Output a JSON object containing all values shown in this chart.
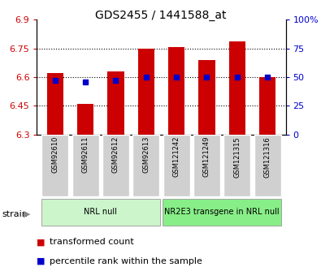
{
  "title": "GDS2455 / 1441588_at",
  "samples": [
    "GSM92610",
    "GSM92611",
    "GSM92612",
    "GSM92613",
    "GSM121242",
    "GSM121249",
    "GSM121315",
    "GSM121316"
  ],
  "transformed_counts": [
    6.62,
    6.46,
    6.63,
    6.75,
    6.755,
    6.69,
    6.785,
    6.6
  ],
  "percentile_ranks": [
    47,
    46,
    47,
    50,
    50,
    50,
    50,
    50
  ],
  "ylim": [
    6.3,
    6.9
  ],
  "yticks": [
    6.3,
    6.45,
    6.6,
    6.75,
    6.9
  ],
  "ytick_labels": [
    "6.3",
    "6.45",
    "6.6",
    "6.75",
    "6.9"
  ],
  "y2lim": [
    0,
    100
  ],
  "y2ticks": [
    0,
    25,
    50,
    75,
    100
  ],
  "y2tick_labels": [
    "0",
    "25",
    "50",
    "75",
    "100%"
  ],
  "bar_color": "#cc0000",
  "dot_color": "#0000cc",
  "groups": [
    {
      "label": "NRL null",
      "start": 0,
      "end": 4,
      "color": "#ccf5cc"
    },
    {
      "label": "NR2E3 transgene in NRL null",
      "start": 4,
      "end": 8,
      "color": "#88ee88"
    }
  ],
  "strain_label": "strain",
  "bar_width": 0.55,
  "tick_label_color_left": "#cc0000",
  "tick_label_color_right": "#0000cc",
  "legend_items": [
    "transformed count",
    "percentile rank within the sample"
  ]
}
